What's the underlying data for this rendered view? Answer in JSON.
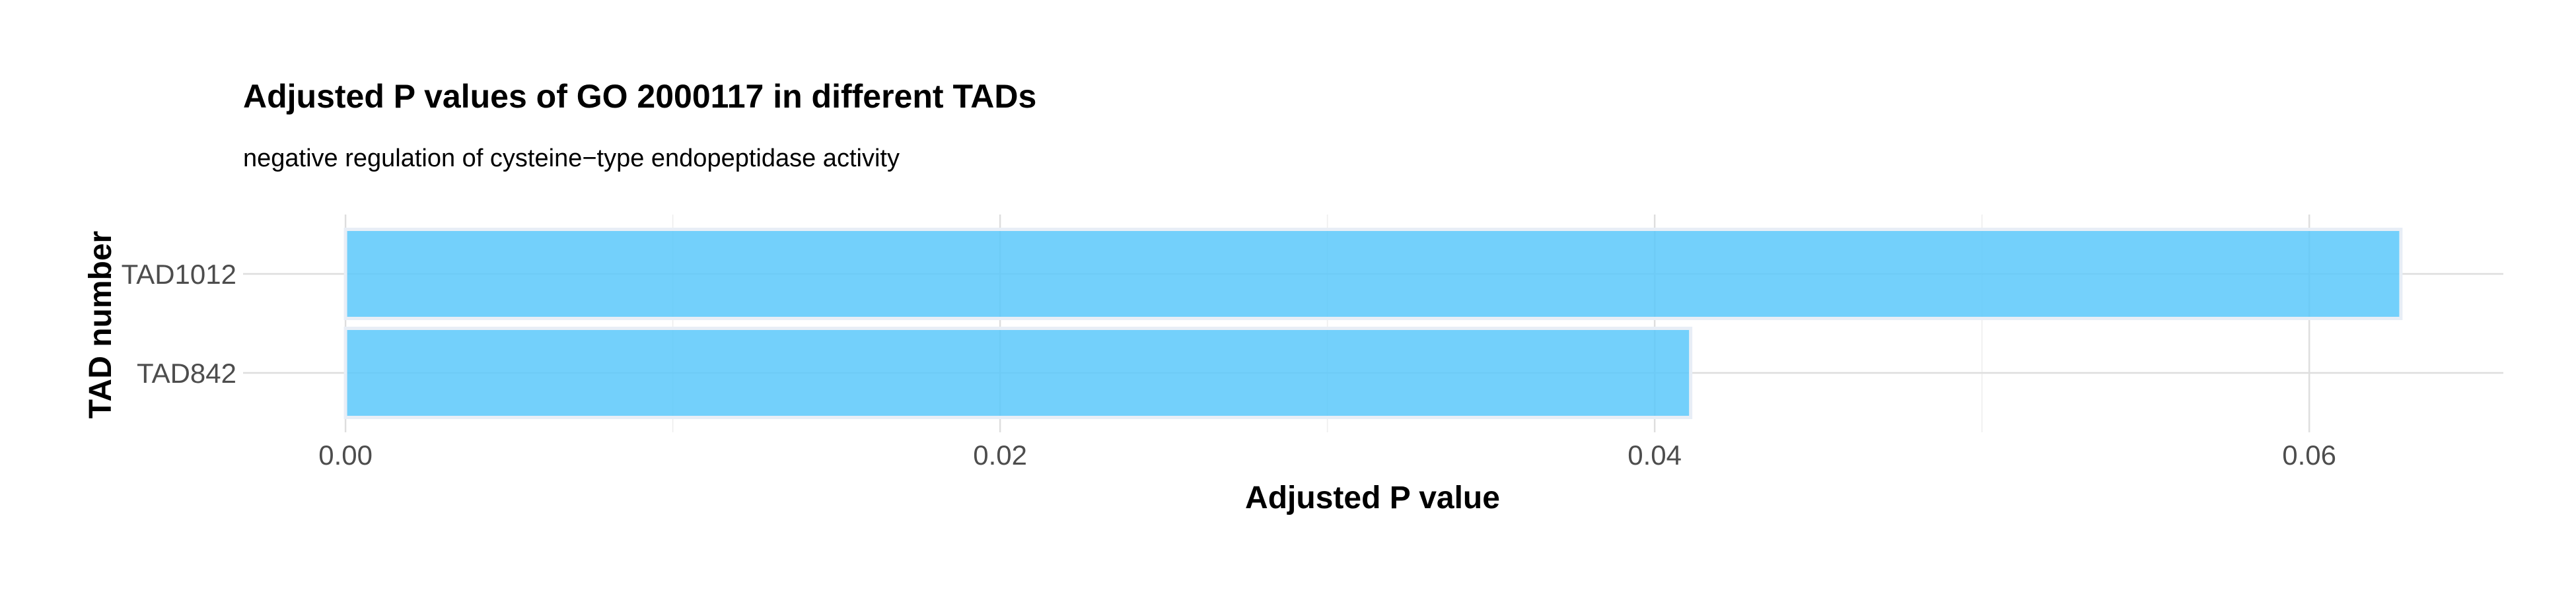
{
  "chart_data": {
    "type": "bar",
    "orientation": "horizontal",
    "title": "Adjusted P values of GO 2000117 in different TADs",
    "subtitle": "negative regulation of cysteine−type endopeptidase activity",
    "xlabel": "Adjusted P value",
    "ylabel": "TAD number",
    "categories": [
      "TAD1012",
      "TAD842"
    ],
    "values": [
      0.0628,
      0.0411
    ],
    "xlim": [
      -0.00313,
      0.06593
    ],
    "xticks": [
      0.0,
      0.02,
      0.04,
      0.06
    ],
    "xtick_labels": [
      "0.00",
      "0.02",
      "0.04",
      "0.06"
    ],
    "grid": true,
    "legend": "none",
    "bar_color": "#5bc8fa",
    "background_color": "#ffffff"
  }
}
